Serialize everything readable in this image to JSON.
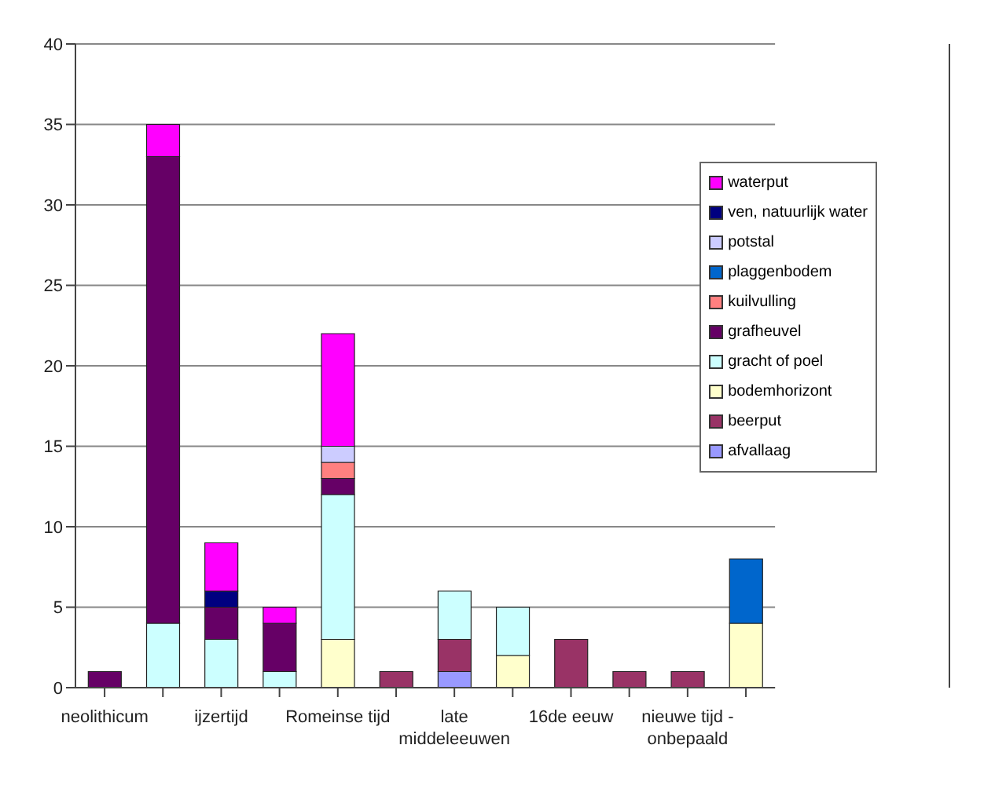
{
  "chart_data": {
    "type": "bar",
    "stacked": true,
    "categories": [
      "neolithicum",
      null,
      "ijzertijd",
      null,
      "Romeinse tijd",
      null,
      "late middeleeuwen",
      null,
      "16de eeuw",
      null,
      "nieuwe tijd - onbepaald",
      null
    ],
    "series": [
      {
        "name": "afvallaag",
        "color": "#9999ff",
        "values": [
          0,
          0,
          0,
          0,
          0,
          0,
          1,
          0,
          0,
          0,
          0,
          0
        ]
      },
      {
        "name": "beerput",
        "color": "#993366",
        "values": [
          0,
          0,
          0,
          0,
          0,
          1,
          2,
          0,
          3,
          1,
          1,
          0
        ]
      },
      {
        "name": "bodemhorizont",
        "color": "#ffffcc",
        "values": [
          0,
          0,
          0,
          0,
          3,
          0,
          0,
          2,
          0,
          0,
          0,
          4
        ]
      },
      {
        "name": "gracht of poel",
        "color": "#ccffff",
        "values": [
          0,
          4,
          3,
          1,
          9,
          0,
          3,
          3,
          0,
          0,
          0,
          0
        ]
      },
      {
        "name": "grafheuvel",
        "color": "#660066",
        "values": [
          1,
          29,
          2,
          3,
          1,
          0,
          0,
          0,
          0,
          0,
          0,
          0
        ]
      },
      {
        "name": "kuilvulling",
        "color": "#ff8080",
        "values": [
          0,
          0,
          0,
          0,
          1,
          0,
          0,
          0,
          0,
          0,
          0,
          0
        ]
      },
      {
        "name": "plaggenbodem",
        "color": "#0066cc",
        "values": [
          0,
          0,
          0,
          0,
          0,
          0,
          0,
          0,
          0,
          0,
          0,
          4
        ]
      },
      {
        "name": "potstal",
        "color": "#ccccff",
        "values": [
          0,
          0,
          0,
          0,
          1,
          0,
          0,
          0,
          0,
          0,
          0,
          0
        ]
      },
      {
        "name": "ven, natuurlijk water",
        "color": "#000080",
        "values": [
          0,
          0,
          1,
          0,
          0,
          0,
          0,
          0,
          0,
          0,
          0,
          0
        ]
      },
      {
        "name": "waterput",
        "color": "#ff00ff",
        "values": [
          0,
          2,
          3,
          1,
          7,
          0,
          0,
          0,
          0,
          0,
          0,
          0
        ]
      }
    ],
    "ylim": [
      0,
      40
    ],
    "yticks": [
      0,
      5,
      10,
      15,
      20,
      25,
      30,
      35,
      40
    ],
    "grid": "y",
    "legend": "top right"
  }
}
